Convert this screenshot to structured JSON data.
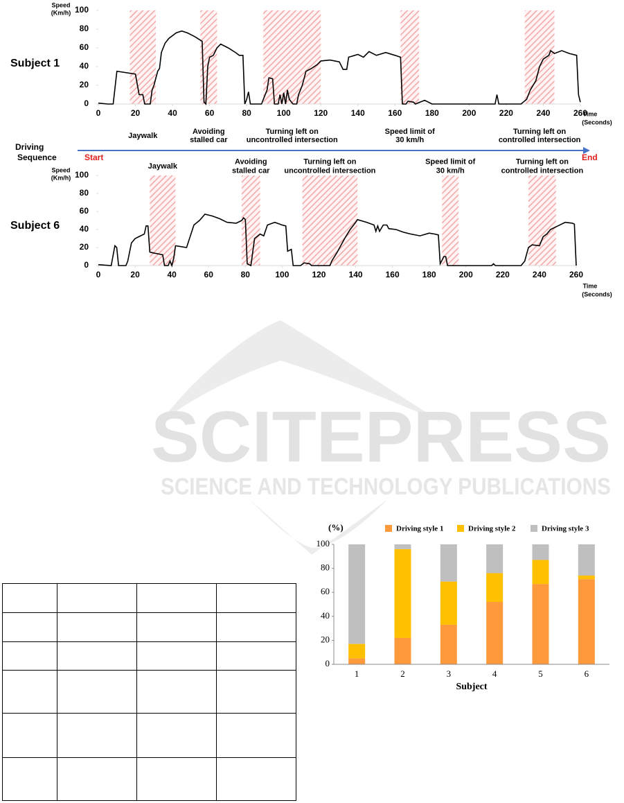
{
  "chart_data": [
    {
      "type": "line",
      "title": "Subject 1",
      "y_label": [
        "Speed",
        "(Km/h)"
      ],
      "x_label": [
        "Time",
        "(Seconds)"
      ],
      "xlim": [
        0,
        260
      ],
      "xticks": [
        0,
        20,
        40,
        60,
        80,
        100,
        120,
        140,
        160,
        180,
        200,
        220,
        240,
        260
      ],
      "ylim": [
        0,
        100
      ],
      "yticks": [
        0,
        20,
        40,
        60,
        80,
        100
      ],
      "grid": false,
      "events": [
        {
          "label": [
            "Jaywalk"
          ],
          "start": 17,
          "end": 31
        },
        {
          "label": [
            "Avoiding",
            "stalled car"
          ],
          "start": 55,
          "end": 64
        },
        {
          "label": [
            "Turning left on",
            "uncontrolled intersection"
          ],
          "start": 89,
          "end": 120
        },
        {
          "label": [
            "Speed limit of",
            "30 km/h"
          ],
          "start": 163,
          "end": 173
        },
        {
          "label": [
            "Turning left on",
            "controlled intersection"
          ],
          "start": 230,
          "end": 246
        }
      ],
      "series": [
        {
          "name": "Subject 1",
          "color": "#000000",
          "x": [
            0,
            5,
            8,
            10,
            20,
            22,
            24,
            25,
            28,
            29,
            30,
            32,
            33,
            34,
            36,
            38,
            42,
            45,
            48,
            52,
            56,
            57,
            58,
            59,
            60,
            62,
            64,
            66,
            70,
            74,
            76,
            78,
            79,
            80,
            81,
            82,
            88,
            91,
            92,
            94,
            95,
            97,
            98,
            99,
            100,
            101,
            102,
            103,
            105,
            107,
            108,
            110,
            112,
            115,
            118,
            120,
            125,
            130,
            132,
            134,
            135,
            140,
            143,
            146,
            150,
            155,
            160,
            163,
            164,
            166,
            167,
            170,
            171,
            176,
            180,
            200,
            214,
            215,
            216,
            228,
            231,
            233,
            236,
            238,
            240,
            243,
            244,
            246,
            250,
            254,
            258,
            259,
            260
          ],
          "values": [
            1,
            0,
            0,
            35,
            32,
            10,
            10,
            0,
            0,
            15,
            20,
            35,
            38,
            55,
            65,
            70,
            76,
            78,
            76,
            72,
            67,
            2,
            0,
            40,
            50,
            52,
            60,
            64,
            60,
            55,
            52,
            52,
            0,
            5,
            13,
            0,
            0,
            15,
            28,
            27,
            0,
            0,
            10,
            0,
            12,
            0,
            15,
            5,
            0,
            0,
            10,
            20,
            35,
            38,
            42,
            46,
            47,
            45,
            37,
            37,
            50,
            53,
            50,
            56,
            52,
            55,
            52,
            50,
            0,
            0,
            3,
            2,
            0,
            4,
            0,
            0,
            0,
            10,
            0,
            0,
            5,
            15,
            25,
            40,
            48,
            52,
            57,
            54,
            57,
            54,
            52,
            10,
            2
          ]
        }
      ]
    },
    {
      "type": "line",
      "title": "Subject 6",
      "y_label": [
        "Speed",
        "(Km/h)"
      ],
      "x_label": [
        "Time",
        "(Seconds)"
      ],
      "xlim": [
        0,
        260
      ],
      "xticks": [
        0,
        20,
        40,
        60,
        80,
        100,
        120,
        140,
        160,
        180,
        200,
        220,
        240,
        260
      ],
      "ylim": [
        0,
        100
      ],
      "yticks": [
        0,
        20,
        40,
        60,
        80,
        100
      ],
      "grid": false,
      "events": [
        {
          "label": [
            "Jaywalk"
          ],
          "start": 28,
          "end": 42
        },
        {
          "label": [
            "Avoiding",
            "stalled car"
          ],
          "start": 78,
          "end": 88
        },
        {
          "label": [
            "Turning left on",
            "uncontrolled intersection"
          ],
          "start": 111,
          "end": 141
        },
        {
          "label": [
            "Speed limit of",
            "30 km/h"
          ],
          "start": 187,
          "end": 196
        },
        {
          "label": [
            "Turning left on",
            "controlled intersection"
          ],
          "start": 234,
          "end": 249
        }
      ],
      "series": [
        {
          "name": "Subject 6",
          "color": "#000000",
          "x": [
            0,
            7,
            9,
            10,
            11,
            15,
            16,
            18,
            20,
            22,
            25,
            26,
            27,
            28,
            30,
            35,
            36,
            38,
            39,
            40,
            41,
            42,
            48,
            52,
            55,
            58,
            62,
            66,
            70,
            75,
            78,
            79,
            80,
            81,
            83,
            85,
            88,
            90,
            92,
            96,
            100,
            102,
            103,
            105,
            106,
            110,
            112,
            115,
            116,
            126,
            127,
            130,
            134,
            137,
            140,
            141,
            146,
            150,
            151,
            152,
            153,
            155,
            157,
            158,
            162,
            166,
            170,
            175,
            180,
            183,
            185,
            186,
            188,
            189,
            190,
            200,
            214,
            215,
            216,
            230,
            232,
            234,
            236,
            240,
            242,
            244,
            246,
            250,
            254,
            258,
            259,
            260
          ],
          "values": [
            1,
            0,
            22,
            20,
            0,
            0,
            5,
            25,
            30,
            32,
            35,
            44,
            44,
            15,
            14,
            12,
            0,
            0,
            5,
            0,
            8,
            22,
            20,
            45,
            50,
            57,
            55,
            52,
            48,
            47,
            50,
            53,
            51,
            2,
            0,
            30,
            35,
            33,
            45,
            48,
            45,
            44,
            16,
            18,
            0,
            0,
            3,
            2,
            0,
            0,
            5,
            15,
            30,
            40,
            48,
            51,
            48,
            45,
            38,
            44,
            38,
            45,
            45,
            41,
            40,
            37,
            35,
            33,
            36,
            35,
            34,
            2,
            10,
            10,
            0,
            0,
            0,
            2,
            0,
            0,
            5,
            20,
            23,
            22,
            32,
            35,
            40,
            44,
            48,
            47,
            46,
            0
          ]
        }
      ]
    },
    {
      "type": "stacked_bar",
      "y_label": "(%)",
      "x_label": "Subject",
      "categories": [
        "1",
        "2",
        "3",
        "4",
        "5",
        "6"
      ],
      "ylim": [
        0,
        100
      ],
      "yticks": [
        0,
        20,
        40,
        60,
        80,
        100
      ],
      "grid": false,
      "series": [
        {
          "name": "Driving style 1",
          "color": "#ff9a3c",
          "values": [
            5,
            22,
            33,
            52,
            67,
            71
          ]
        },
        {
          "name": "Driving style 2",
          "color": "#ffc000",
          "values": [
            12,
            74,
            36,
            24,
            20,
            3
          ]
        },
        {
          "name": "Driving style 3",
          "color": "#bfbfbf",
          "values": [
            83,
            4,
            31,
            24,
            13,
            26
          ]
        }
      ]
    }
  ],
  "sequence": {
    "label": [
      "Driving",
      "Sequence"
    ],
    "start": "Start",
    "end": "End"
  },
  "watermark": {
    "title": "SCITEPRESS",
    "subtitle": "SCIENCE AND TECHNOLOGY PUBLICATIONS"
  }
}
